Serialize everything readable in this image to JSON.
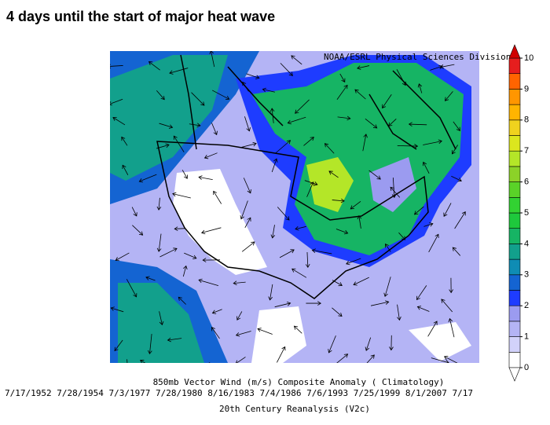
{
  "title": "4 days until the start of major heat wave",
  "credit": "NOAA/ESRL Physical Sciences Division",
  "colorbar": {
    "ticks": [
      0,
      1,
      2,
      3,
      4,
      5,
      6,
      7,
      8,
      9,
      10
    ],
    "levels": [
      0,
      0.5,
      1,
      1.5,
      2,
      2.5,
      3,
      3.5,
      4,
      4.5,
      5,
      5.5,
      6,
      6.5,
      7,
      7.5,
      8,
      8.5,
      9,
      9.5,
      10
    ],
    "colors": [
      "#ffffff",
      "#d2d2fa",
      "#b4b4f5",
      "#9b9bf0",
      "#1e3cff",
      "#1464d2",
      "#0f8cb4",
      "#12a08c",
      "#16b464",
      "#1ec83c",
      "#32d232",
      "#5ad228",
      "#8cd228",
      "#b4e628",
      "#dce61e",
      "#f0d21e",
      "#ffb400",
      "#ff9600",
      "#ff6400",
      "#e61e1e"
    ],
    "over_color": "#d00000",
    "under_color": "#ffffff"
  },
  "caption": {
    "variable": "850mb Vector Wind (m/s) Composite Anomaly ( Climatology)",
    "dates": "7/17/1952 7/28/1954 7/3/1977 7/28/1980 8/16/1983 7/4/1986 7/6/1993 7/25/1999 8/1/2007 7/17",
    "source": "20th Century Reanalysis (V2c)"
  }
}
